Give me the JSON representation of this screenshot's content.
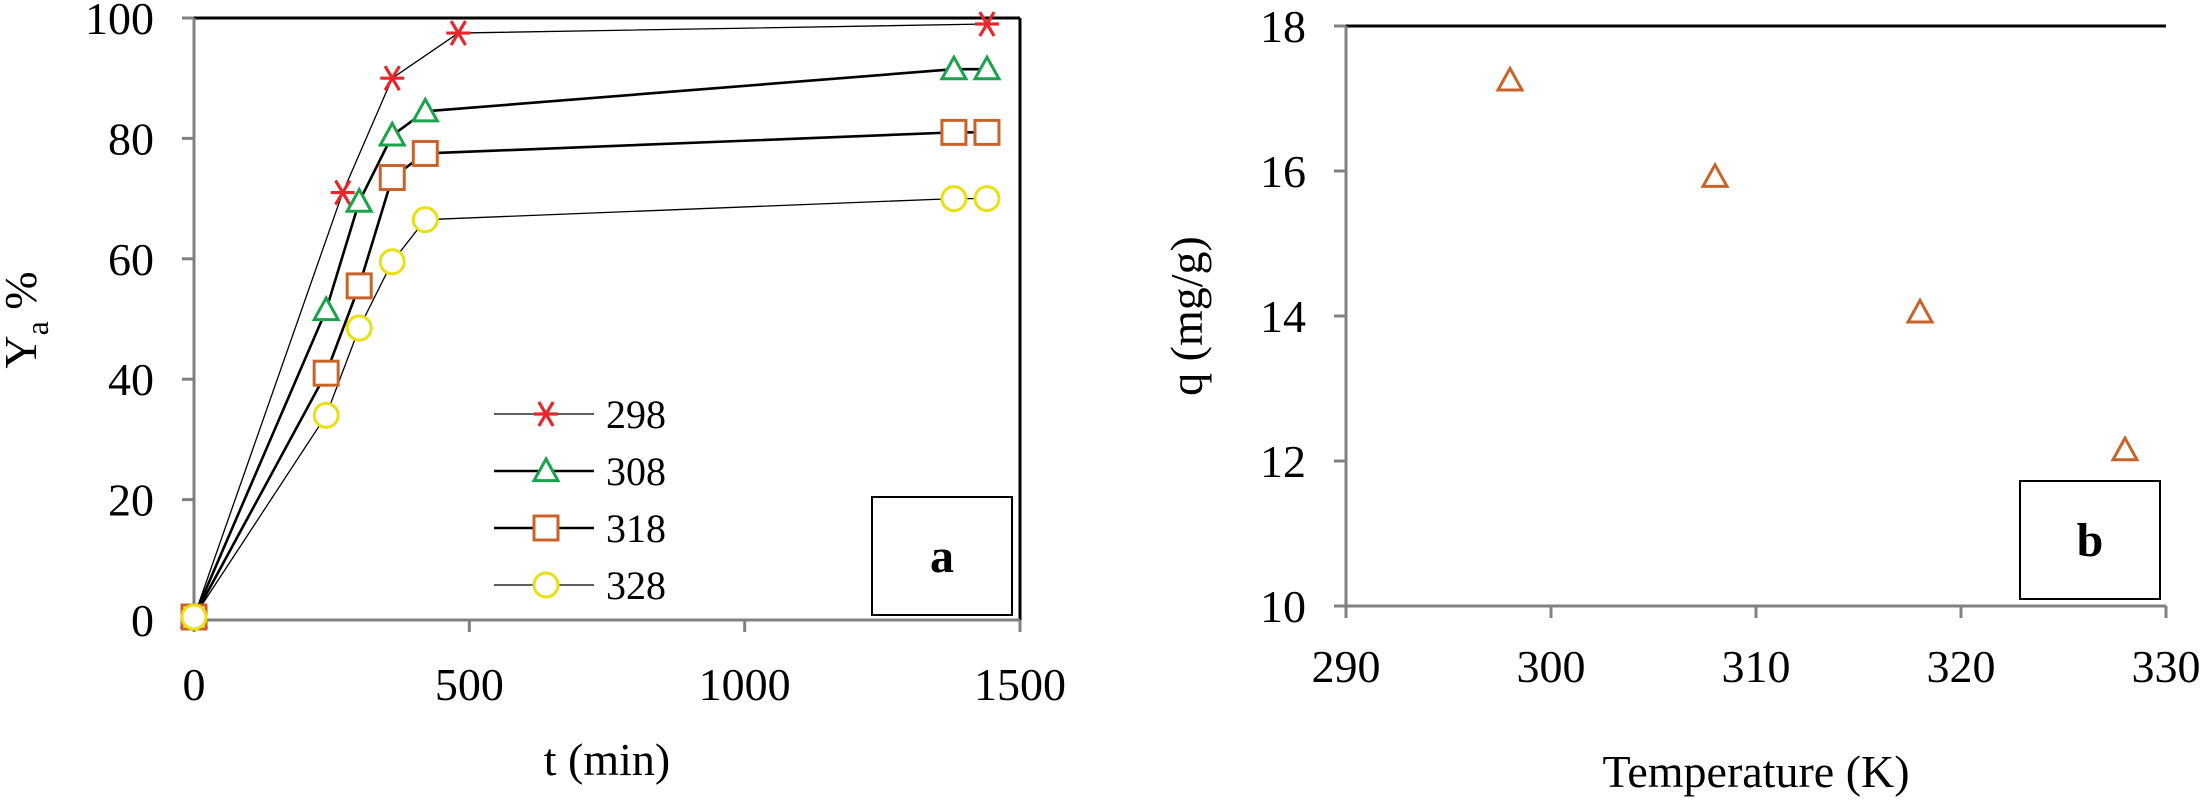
{
  "chart_data": [
    {
      "type": "line",
      "panel_label": "a",
      "xlabel": "t (min)",
      "ylabel_main": "Y",
      "ylabel_sub": "a",
      "ylabel_suffix": " %",
      "xlim": [
        0,
        1500
      ],
      "ylim": [
        0,
        100
      ],
      "xticks": [
        0,
        500,
        1000,
        1500
      ],
      "yticks": [
        0,
        20,
        40,
        60,
        80,
        100
      ],
      "grid": false,
      "legend_position": "lower-middle",
      "series": [
        {
          "name": "298",
          "color": "#e8262b",
          "marker": "asterisk",
          "line_width": 1.3,
          "x": [
            0,
            270,
            360,
            480,
            1440
          ],
          "y": [
            0.5,
            71,
            90,
            97.5,
            99
          ]
        },
        {
          "name": "308",
          "color": "#1aa34a",
          "marker": "triangle",
          "line_width": 2.6,
          "x": [
            0,
            240,
            300,
            360,
            420,
            1380,
            1440
          ],
          "y": [
            0.5,
            51.5,
            69.5,
            80.5,
            84.5,
            91.5,
            91.5
          ]
        },
        {
          "name": "318",
          "color": "#c8632a",
          "marker": "square",
          "line_width": 2.6,
          "x": [
            0,
            240,
            300,
            360,
            420,
            1380,
            1440
          ],
          "y": [
            0.5,
            41,
            55.5,
            73.5,
            77.5,
            81,
            81
          ]
        },
        {
          "name": "328",
          "color": "#e8e010",
          "marker": "circle",
          "line_width": 1.3,
          "x": [
            0,
            240,
            300,
            360,
            420,
            1380,
            1440
          ],
          "y": [
            0.5,
            34,
            48.5,
            59.5,
            66.5,
            70,
            70
          ]
        }
      ]
    },
    {
      "type": "scatter",
      "panel_label": "b",
      "xlabel": "Temperature (K)",
      "ylabel": "q (mg/g)",
      "xlim": [
        290,
        330
      ],
      "ylim": [
        10,
        18
      ],
      "xticks": [
        290,
        300,
        310,
        320,
        330
      ],
      "yticks": [
        10,
        12,
        14,
        16,
        18
      ],
      "grid": false,
      "series": [
        {
          "color": "#c8632a",
          "marker": "triangle",
          "x": [
            298,
            308,
            318,
            328
          ],
          "y": [
            17.25,
            15.92,
            14.05,
            12.15
          ]
        }
      ]
    }
  ]
}
